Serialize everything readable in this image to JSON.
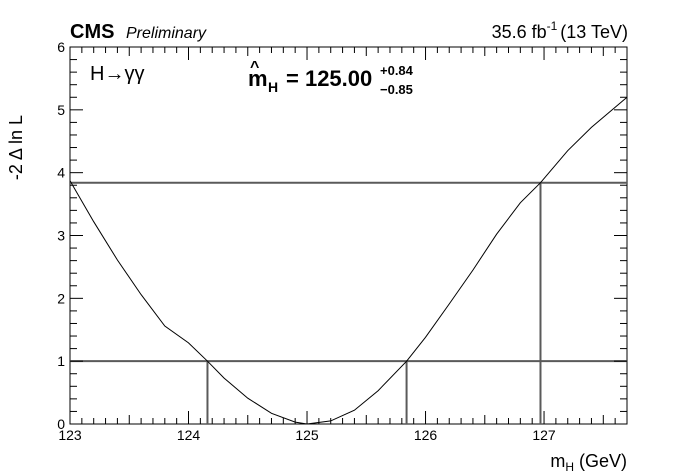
{
  "header": {
    "experiment": "CMS",
    "status": "Preliminary",
    "lumi_text": "35.6 fb",
    "lumi_exponent": "-1",
    "energy_text": "(13 TeV)"
  },
  "annotations": {
    "channel": "H→γγ",
    "fit_symbol": "m",
    "fit_subscript": "H",
    "fit_value": "= 125.00",
    "err_up": "+0.84",
    "err_down": "−0.85"
  },
  "chart_data": {
    "type": "line",
    "title": "",
    "xlabel": "m",
    "xlabel_subscript": "H",
    "xlabel_unit": "(GeV)",
    "ylabel": "-2 Δ ln L",
    "xlim": [
      123.0,
      127.7
    ],
    "ylim": [
      0,
      6
    ],
    "x_ticks": [
      123,
      124,
      125,
      126,
      127
    ],
    "y_ticks": [
      0,
      1,
      2,
      3,
      4,
      5,
      6
    ],
    "grid": false,
    "series": [
      {
        "x": [
          123.0,
          123.2,
          123.4,
          123.6,
          123.8,
          124.0,
          124.16,
          124.3,
          124.5,
          124.7,
          124.9,
          125.0,
          125.2,
          125.4,
          125.6,
          125.84,
          126.0,
          126.2,
          126.4,
          126.6,
          126.8,
          126.97,
          127.2,
          127.4,
          127.7
        ],
        "y": [
          3.87,
          3.22,
          2.61,
          2.06,
          1.56,
          1.29,
          1.0,
          0.73,
          0.41,
          0.17,
          0.03,
          0.0,
          0.05,
          0.22,
          0.53,
          1.0,
          1.38,
          1.91,
          2.45,
          3.02,
          3.52,
          3.84,
          4.35,
          4.72,
          5.2
        ]
      }
    ],
    "reference_lines": {
      "horizontal": [
        1,
        3.84
      ],
      "vertical": [
        {
          "x": 124.16,
          "y_top": 1
        },
        {
          "x": 125.84,
          "y_top": 1
        },
        {
          "x": 126.97,
          "y_top": 3.84
        }
      ]
    }
  }
}
